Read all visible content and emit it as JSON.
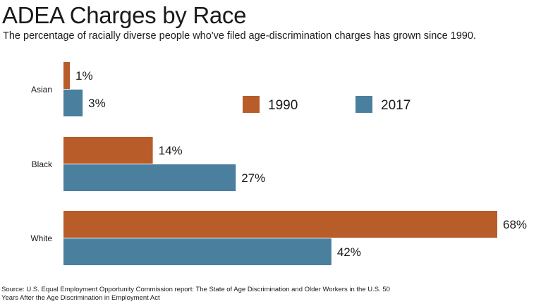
{
  "title": "ADEA Charges by Race",
  "subtitle": "The percentage of racially diverse people who've filed age-discrimination charges has grown since 1990.",
  "source": "Source: U.S. Equal Employment Opportunity Commission report: The State of Age Discrimination and Older Workers in the U.S. 50 Years After the Age Discrimination in Employment Act",
  "chart_data": {
    "type": "bar",
    "orientation": "horizontal",
    "title": "ADEA Charges by Race",
    "categories": [
      "Asian",
      "Black",
      "White"
    ],
    "series": [
      {
        "name": "1990",
        "values": [
          1,
          14,
          68
        ],
        "labels": [
          "1%",
          "14%",
          "68%"
        ],
        "color": "#b85c2a"
      },
      {
        "name": "2017",
        "values": [
          3,
          27,
          42
        ],
        "labels": [
          "3%",
          "27%",
          "42%"
        ],
        "color": "#4a7f9d"
      }
    ],
    "xlim": [
      0,
      68
    ],
    "grid": false,
    "legend": "right, horizontal"
  }
}
